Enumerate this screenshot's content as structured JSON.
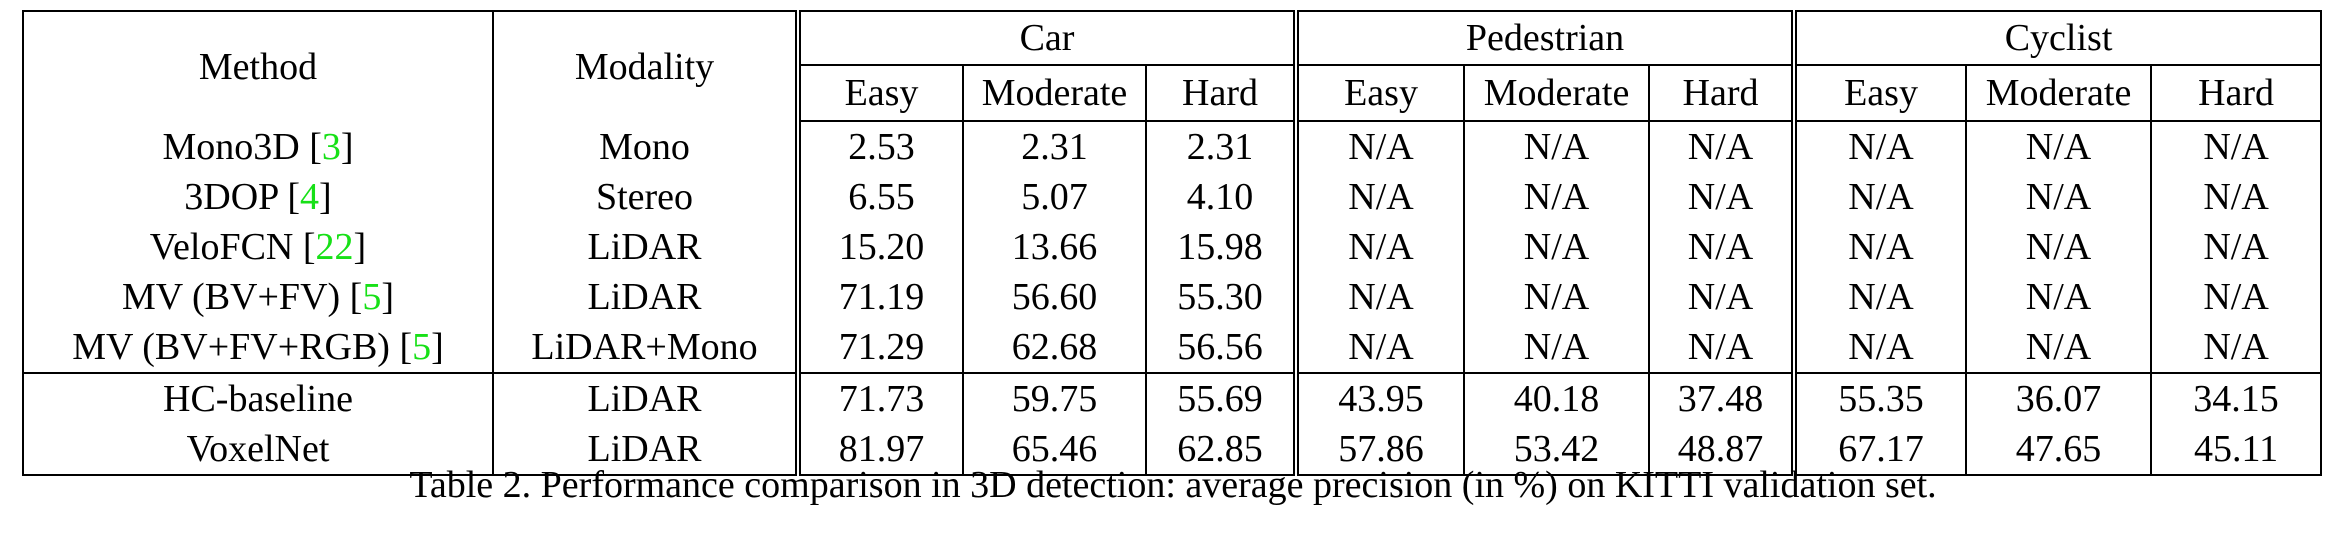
{
  "table": {
    "headers": {
      "method": "Method",
      "modality": "Modality",
      "groups": [
        "Car",
        "Pedestrian",
        "Cyclist"
      ],
      "subcolumns": [
        "Easy",
        "Moderate",
        "Hard"
      ]
    },
    "rows": [
      {
        "method": "Mono3D",
        "ref": "3",
        "modality": "Mono",
        "values": [
          "2.53",
          "2.31",
          "2.31",
          "N/A",
          "N/A",
          "N/A",
          "N/A",
          "N/A",
          "N/A"
        ]
      },
      {
        "method": "3DOP",
        "ref": "4",
        "modality": "Stereo",
        "values": [
          "6.55",
          "5.07",
          "4.10",
          "N/A",
          "N/A",
          "N/A",
          "N/A",
          "N/A",
          "N/A"
        ]
      },
      {
        "method": "VeloFCN",
        "ref": "22",
        "modality": "LiDAR",
        "values": [
          "15.20",
          "13.66",
          "15.98",
          "N/A",
          "N/A",
          "N/A",
          "N/A",
          "N/A",
          "N/A"
        ]
      },
      {
        "method": "MV (BV+FV)",
        "ref": "5",
        "modality": "LiDAR",
        "values": [
          "71.19",
          "56.60",
          "55.30",
          "N/A",
          "N/A",
          "N/A",
          "N/A",
          "N/A",
          "N/A"
        ]
      },
      {
        "method": "MV (BV+FV+RGB)",
        "ref": "5",
        "modality": "LiDAR+Mono",
        "values": [
          "71.29",
          "62.68",
          "56.56",
          "N/A",
          "N/A",
          "N/A",
          "N/A",
          "N/A",
          "N/A"
        ]
      },
      {
        "method": "HC-baseline",
        "ref": "",
        "modality": "LiDAR",
        "values": [
          "71.73",
          "59.75",
          "55.69",
          "43.95",
          "40.18",
          "37.48",
          "55.35",
          "36.07",
          "34.15"
        ]
      },
      {
        "method": "VoxelNet",
        "ref": "",
        "modality": "LiDAR",
        "bold": true,
        "values": [
          "81.97",
          "65.46",
          "62.85",
          "57.86",
          "53.42",
          "48.87",
          "67.17",
          "47.65",
          "45.11"
        ]
      }
    ]
  },
  "caption": "Table 2. Performance comparison in 3D detection: average precision (in %) on KITTI validation set."
}
